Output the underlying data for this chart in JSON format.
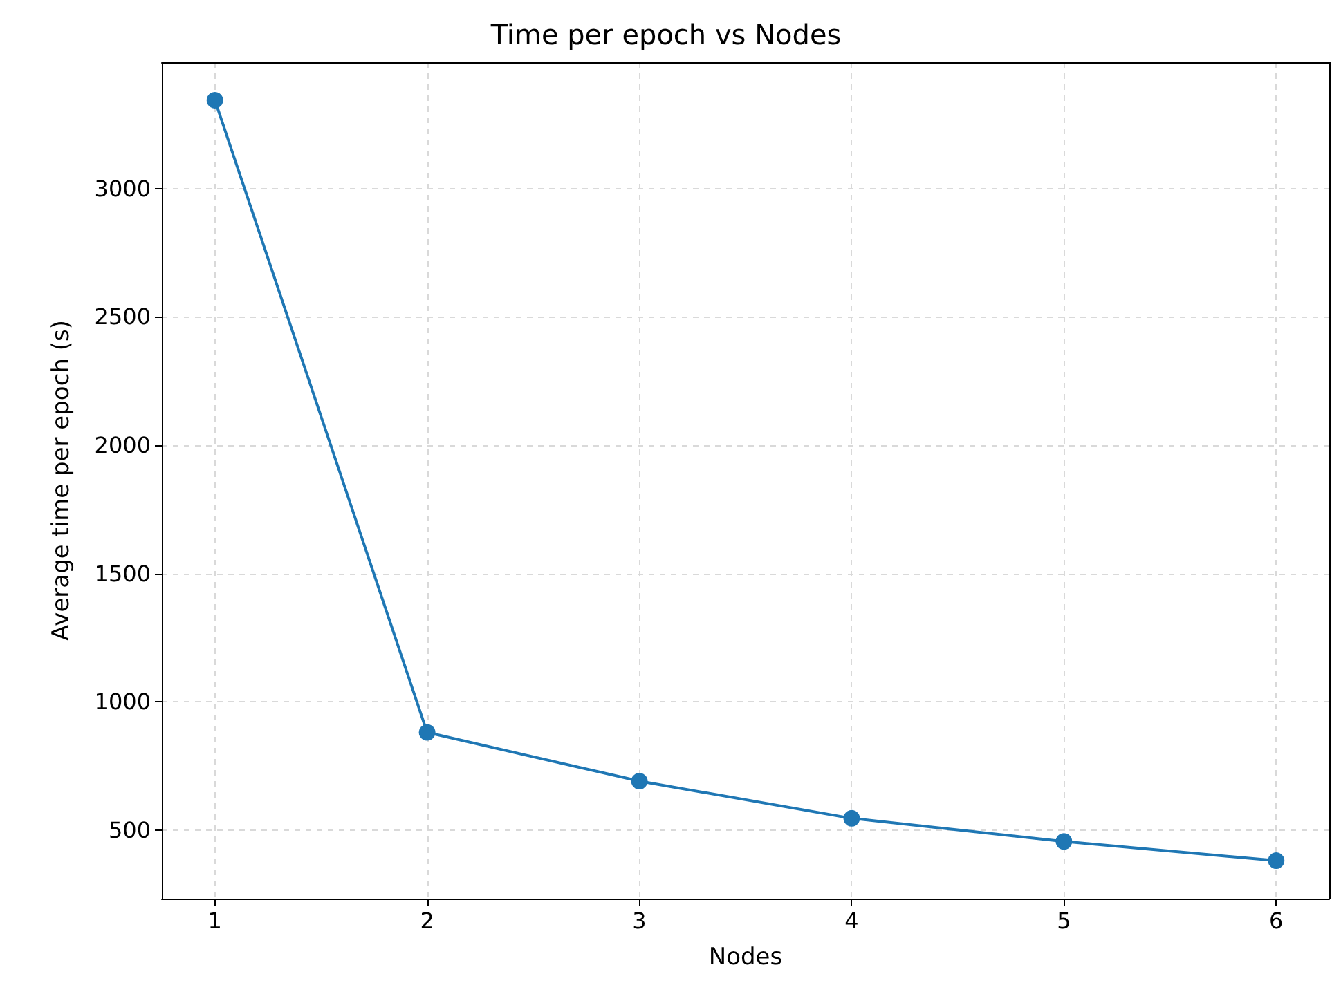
{
  "chart_data": {
    "type": "line",
    "title": "Time per epoch vs Nodes",
    "xlabel": "Nodes",
    "ylabel": "Average time per epoch (s)",
    "x": [
      1,
      2,
      3,
      4,
      5,
      6
    ],
    "series": [
      {
        "color": "#1f77b4",
        "values": [
          3345,
          880,
          690,
          545,
          455,
          380
        ]
      }
    ],
    "xlim": [
      0.75,
      6.25
    ],
    "xticks": [
      1,
      2,
      3,
      4,
      5,
      6
    ],
    "ylim": [
      232,
      3493
    ],
    "yticks": [
      500,
      1000,
      1500,
      2000,
      2500,
      3000
    ],
    "grid": true,
    "marker": "circle",
    "line_style": "solid"
  }
}
